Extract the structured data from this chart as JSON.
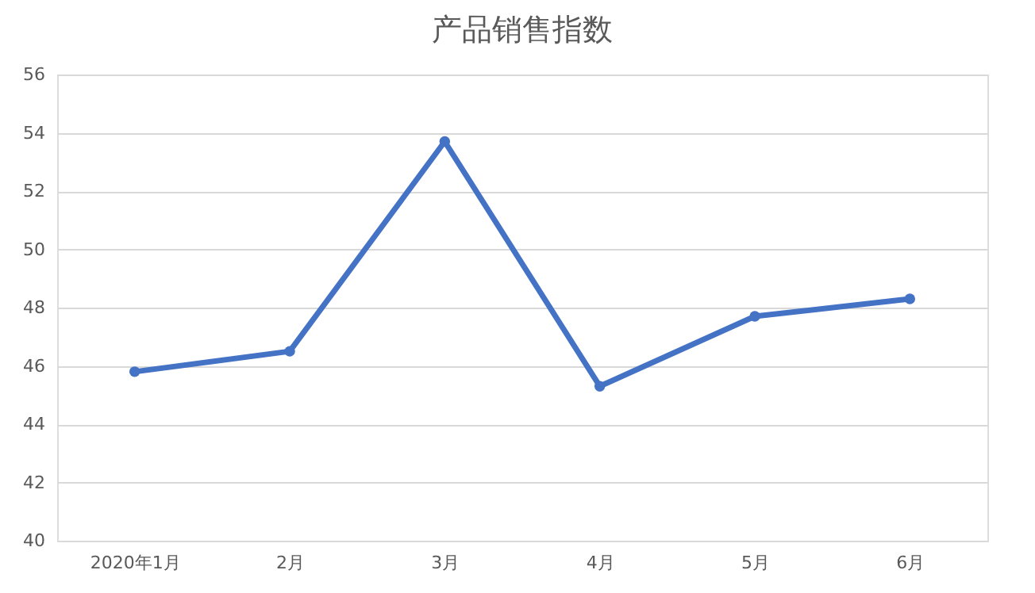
{
  "chart_data": {
    "type": "line",
    "title": "产品销售指数",
    "categories": [
      "2020年1月",
      "2月",
      "3月",
      "4月",
      "5月",
      "6月"
    ],
    "series": [
      {
        "color": "#4472c4",
        "values": [
          45.8,
          46.5,
          53.7,
          45.3,
          47.7,
          48.3
        ]
      }
    ],
    "ylim": [
      40,
      56
    ],
    "yticks": [
      40,
      42,
      44,
      46,
      48,
      50,
      52,
      54,
      56
    ],
    "grid": "y",
    "marker": "circle",
    "line_style": "solid"
  }
}
